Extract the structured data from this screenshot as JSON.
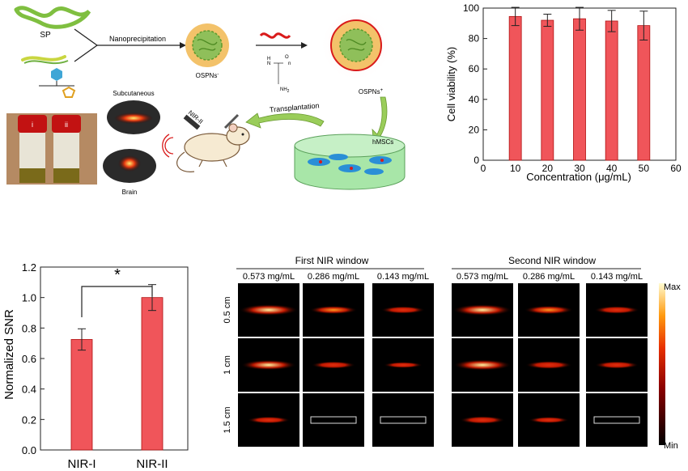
{
  "schematic": {
    "sp_label": "SP",
    "nanoprecipitation_label": "Nanoprecipitation",
    "ospns_minus_label": "OSPNs",
    "ospns_minus_sup": "-",
    "ospns_plus_label": "OSPNs",
    "ospns_plus_sup": "+",
    "vial_label_1": "i",
    "vial_label_2": "ii",
    "subcutaneous_label": "Subcutaneous",
    "brain_label": "Brain",
    "nir_ii_label": "NIR-II",
    "transplantation_label": "Transplantation",
    "hmsc_label": "hMSCs",
    "amine_label": "NH",
    "amine_sub": "2",
    "h_label": "H",
    "n_label": "N",
    "o_label": "O",
    "n_sub": "n"
  },
  "chart_data": [
    {
      "type": "bar",
      "title": "",
      "xlabel": "Concentration (μg/mL)",
      "ylabel": "Cell viability (%)",
      "x": [
        10,
        20,
        30,
        40,
        50
      ],
      "values": [
        94.5,
        92.0,
        93.0,
        91.5,
        88.5
      ],
      "errors": [
        6,
        4,
        7.5,
        7,
        9.5
      ],
      "xlim": [
        0,
        60
      ],
      "ylim": [
        0,
        100
      ],
      "xticks": [
        "0",
        "10",
        "20",
        "30",
        "40",
        "50",
        "60"
      ],
      "yticks": [
        "0",
        "20",
        "40",
        "60",
        "80",
        "100"
      ],
      "bar_color": "#f0555a",
      "grid": false
    },
    {
      "type": "bar",
      "title": "",
      "xlabel": "",
      "ylabel": "Normalized SNR",
      "categories": [
        "NIR-I",
        "NIR-II"
      ],
      "values": [
        0.725,
        1.0
      ],
      "errors": [
        0.07,
        0.085
      ],
      "ylim": [
        0.0,
        1.2
      ],
      "yticks": [
        "0.0",
        "0.2",
        "0.4",
        "0.6",
        "0.8",
        "1.0",
        "1.2"
      ],
      "annotation": "*",
      "bar_color": "#f0555a",
      "grid": false
    }
  ],
  "image_grid": {
    "group_titles": [
      "First NIR window",
      "Second NIR window"
    ],
    "concentrations": [
      "0.573 mg/mL",
      "0.286 mg/mL",
      "0.143 mg/mL",
      "0.573 mg/mL",
      "0.286 mg/mL",
      "0.143 mg/mL"
    ],
    "depths": [
      "0.5 cm",
      "1 cm",
      "1.5 cm"
    ],
    "intensity": [
      [
        1.0,
        0.55,
        0.4,
        1.0,
        0.6,
        0.45
      ],
      [
        0.85,
        0.4,
        0.2,
        0.95,
        0.5,
        0.4
      ],
      [
        0.35,
        0.0,
        0.0,
        0.45,
        0.25,
        0.0
      ]
    ],
    "colorbar_max": "Max",
    "colorbar_min": "Min"
  }
}
